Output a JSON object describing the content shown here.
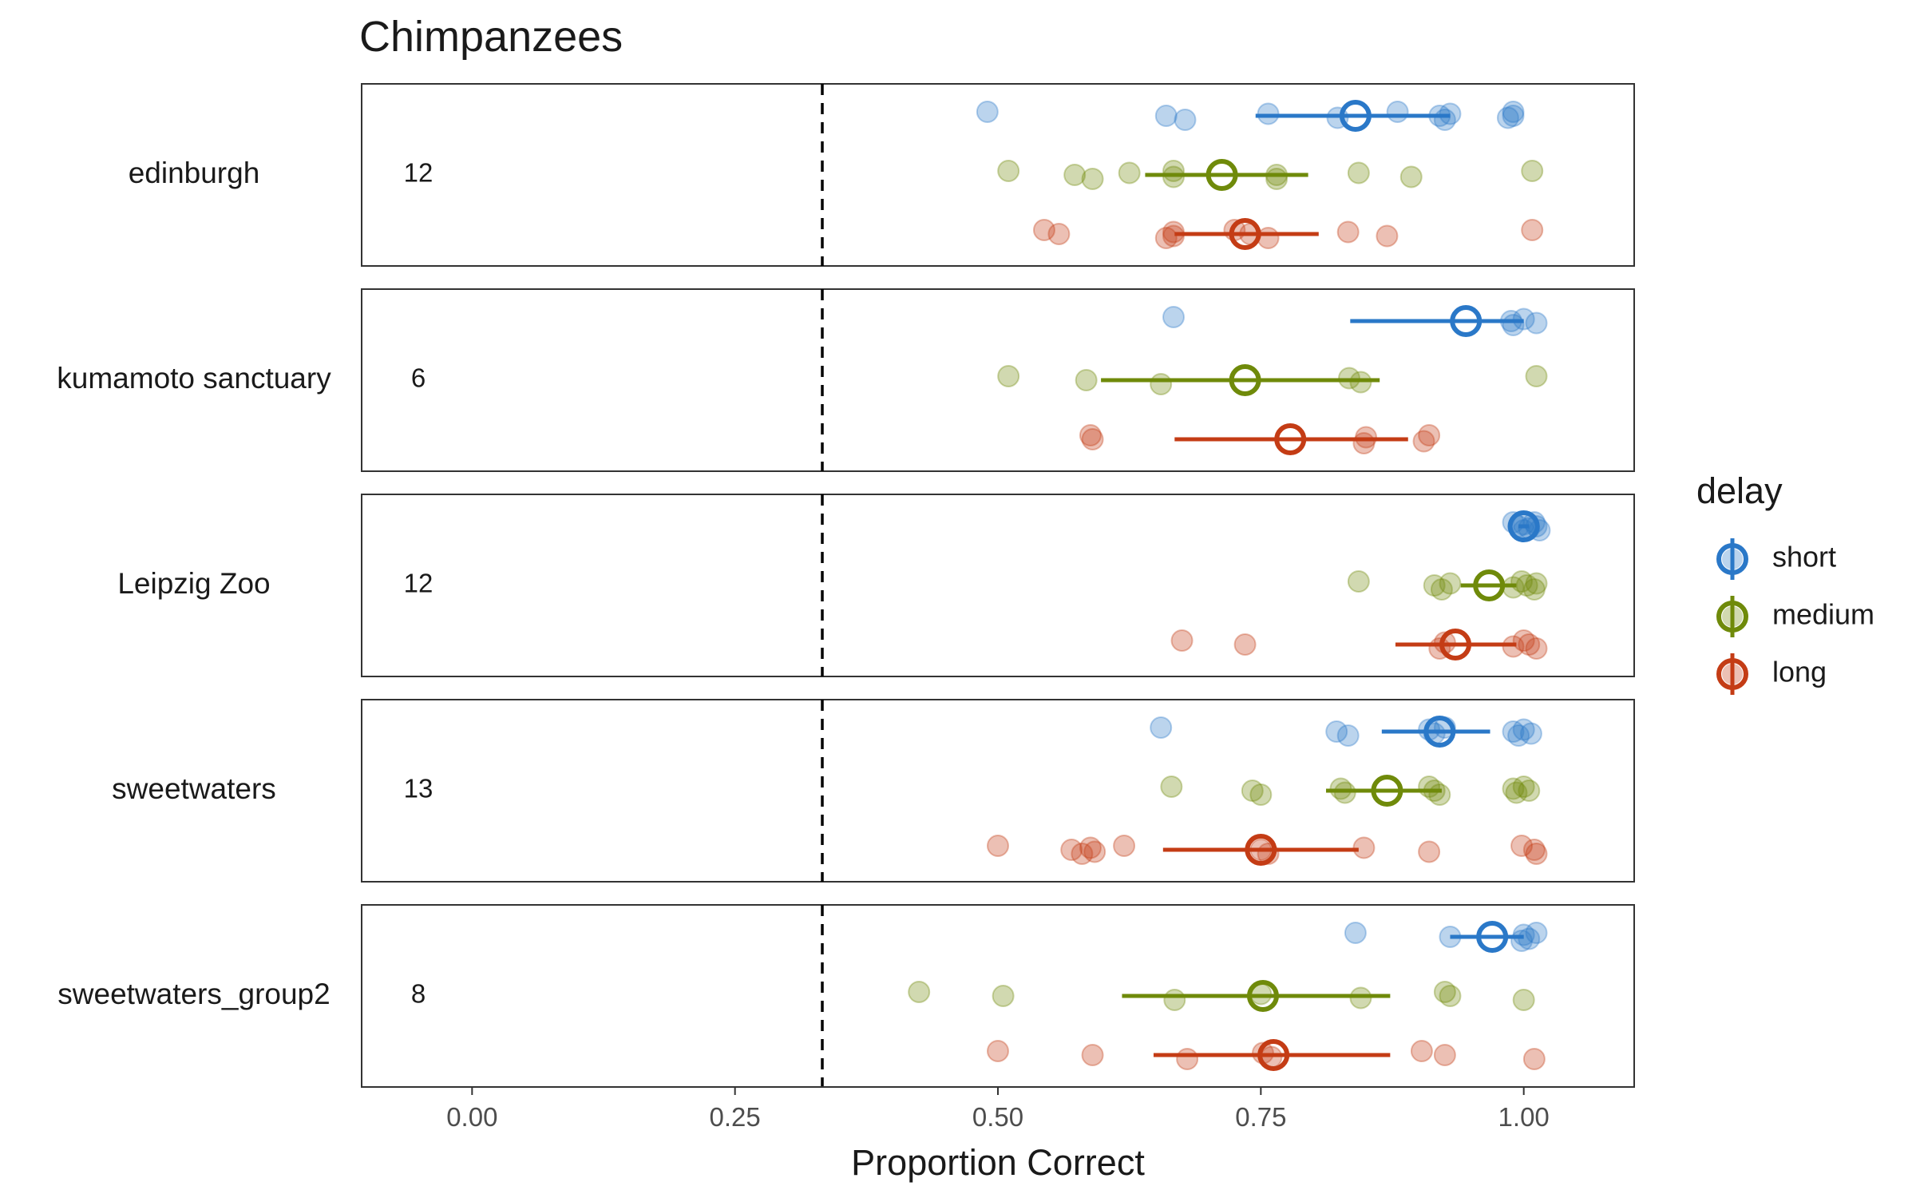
{
  "chart_data": {
    "type": "scatter",
    "title": "Chimpanzees",
    "xlabel": "Proportion Correct",
    "ylabel": "",
    "xlim": [
      -0.105,
      1.105
    ],
    "xticks": [
      "0.00",
      "0.25",
      "0.50",
      "0.75",
      "1.00"
    ],
    "xtick_values": [
      0,
      0.25,
      0.5,
      0.75,
      1.0
    ],
    "chance_level": 0.333,
    "grid": false,
    "legend": {
      "title": "delay",
      "position": "right",
      "entries": [
        {
          "name": "short",
          "color": "#2a78c8"
        },
        {
          "name": "medium",
          "color": "#6f8a0a"
        },
        {
          "name": "long",
          "color": "#c43c15"
        }
      ]
    },
    "panels": [
      {
        "site": "edinburgh",
        "n": "12",
        "series": [
          {
            "name": "short",
            "points": [
              0.49,
              0.66,
              0.678,
              0.757,
              0.823,
              0.88,
              0.92,
              0.925,
              0.93,
              0.985,
              0.99,
              0.99
            ],
            "mean": 0.84,
            "ci": [
              0.745,
              0.93
            ]
          },
          {
            "name": "medium",
            "points": [
              0.51,
              0.573,
              0.59,
              0.625,
              0.667,
              0.667,
              0.765,
              0.765,
              0.843,
              0.893,
              1.008
            ],
            "mean": 0.713,
            "ci": [
              0.64,
              0.795
            ]
          },
          {
            "name": "long",
            "points": [
              0.544,
              0.558,
              0.66,
              0.667,
              0.667,
              0.725,
              0.74,
              0.757,
              0.833,
              0.87,
              1.008
            ],
            "mean": 0.735,
            "ci": [
              0.668,
              0.805
            ]
          }
        ]
      },
      {
        "site": "kumamoto sanctuary",
        "n": "6",
        "series": [
          {
            "name": "short",
            "points": [
              0.667,
              0.988,
              0.99,
              1.0,
              1.012
            ],
            "mean": 0.945,
            "ci": [
              0.835,
              1.0
            ]
          },
          {
            "name": "medium",
            "points": [
              0.51,
              0.584,
              0.655,
              0.834,
              0.845,
              1.012
            ],
            "mean": 0.735,
            "ci": [
              0.598,
              0.863
            ]
          },
          {
            "name": "long",
            "points": [
              0.588,
              0.59,
              0.848,
              0.85,
              0.905,
              0.91
            ],
            "mean": 0.778,
            "ci": [
              0.668,
              0.89
            ]
          }
        ]
      },
      {
        "site": "Leipzig Zoo",
        "n": "12",
        "series": [
          {
            "name": "short",
            "points": [
              0.99,
              0.995,
              1.0,
              1.0,
              1.005,
              1.01,
              1.012,
              1.015
            ],
            "mean": 1.0,
            "ci": [
              0.995,
              1.005
            ]
          },
          {
            "name": "medium",
            "points": [
              0.843,
              0.915,
              0.922,
              0.93,
              0.99,
              0.998,
              1.003,
              1.01,
              1.012
            ],
            "mean": 0.967,
            "ci": [
              0.94,
              0.993
            ]
          },
          {
            "name": "long",
            "points": [
              0.675,
              0.735,
              0.92,
              0.925,
              0.99,
              1.0,
              1.005,
              1.012
            ],
            "mean": 0.935,
            "ci": [
              0.878,
              0.993
            ]
          }
        ]
      },
      {
        "site": "sweetwaters",
        "n": "13",
        "series": [
          {
            "name": "short",
            "points": [
              0.655,
              0.822,
              0.833,
              0.91,
              0.915,
              0.925,
              0.99,
              0.995,
              1.0,
              1.007
            ],
            "mean": 0.92,
            "ci": [
              0.865,
              0.968
            ]
          },
          {
            "name": "medium",
            "points": [
              0.665,
              0.742,
              0.75,
              0.826,
              0.83,
              0.91,
              0.915,
              0.92,
              0.99,
              0.993,
              1.0,
              1.005
            ],
            "mean": 0.87,
            "ci": [
              0.812,
              0.922
            ]
          },
          {
            "name": "long",
            "points": [
              0.5,
              0.57,
              0.58,
              0.588,
              0.592,
              0.62,
              0.75,
              0.757,
              0.848,
              0.91,
              0.998,
              1.01,
              1.012
            ],
            "mean": 0.75,
            "ci": [
              0.657,
              0.843
            ]
          }
        ]
      },
      {
        "site": "sweetwaters_group2",
        "n": "8",
        "series": [
          {
            "name": "short",
            "points": [
              0.84,
              0.93,
              0.998,
              1.0,
              1.005,
              1.012
            ],
            "mean": 0.97,
            "ci": [
              0.93,
              1.0
            ]
          },
          {
            "name": "medium",
            "points": [
              0.425,
              0.505,
              0.668,
              0.75,
              0.845,
              0.925,
              0.93,
              1.0
            ],
            "mean": 0.752,
            "ci": [
              0.618,
              0.873
            ]
          },
          {
            "name": "long",
            "points": [
              0.5,
              0.59,
              0.68,
              0.752,
              0.76,
              0.903,
              0.925,
              1.01
            ],
            "mean": 0.762,
            "ci": [
              0.648,
              0.873
            ]
          }
        ]
      }
    ]
  }
}
